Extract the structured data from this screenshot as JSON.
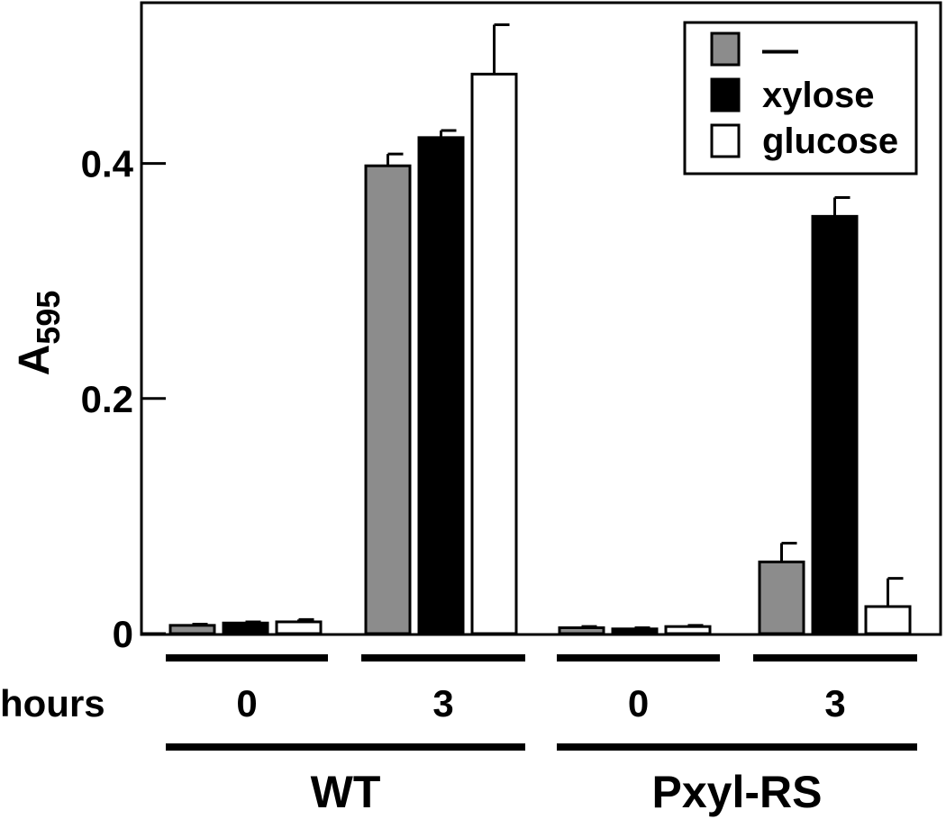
{
  "chart_data": {
    "type": "bar",
    "ylabel": "A",
    "ylabel_sub": "595",
    "ylim": [
      0,
      0.54
    ],
    "yticks": [
      {
        "value": 0,
        "label": "0"
      },
      {
        "value": 0.2,
        "label": "0.2"
      },
      {
        "value": 0.4,
        "label": "0.4"
      }
    ],
    "row_label": "hours",
    "groups": [
      {
        "strain": "WT",
        "hours": "0"
      },
      {
        "strain": "WT",
        "hours": "3"
      },
      {
        "strain": "Pxyl-RS",
        "hours": "0"
      },
      {
        "strain": "Pxyl-RS",
        "hours": "3"
      }
    ],
    "strains": [
      "WT",
      "Pxyl-RS"
    ],
    "series": [
      {
        "name": "—",
        "color": "#8c8c8c",
        "values": [
          0.007,
          0.398,
          0.005,
          0.061
        ],
        "errors": [
          0.001,
          0.01,
          0.001,
          0.016
        ]
      },
      {
        "name": "xylose",
        "color": "#000000",
        "values": [
          0.009,
          0.422,
          0.004,
          0.355
        ],
        "errors": [
          0.001,
          0.006,
          0.001,
          0.016
        ]
      },
      {
        "name": "glucose",
        "color": "#ffffff",
        "values": [
          0.01,
          0.476,
          0.006,
          0.023
        ],
        "errors": [
          0.002,
          0.042,
          0.001,
          0.024
        ]
      }
    ],
    "legend_position": "top-right"
  }
}
